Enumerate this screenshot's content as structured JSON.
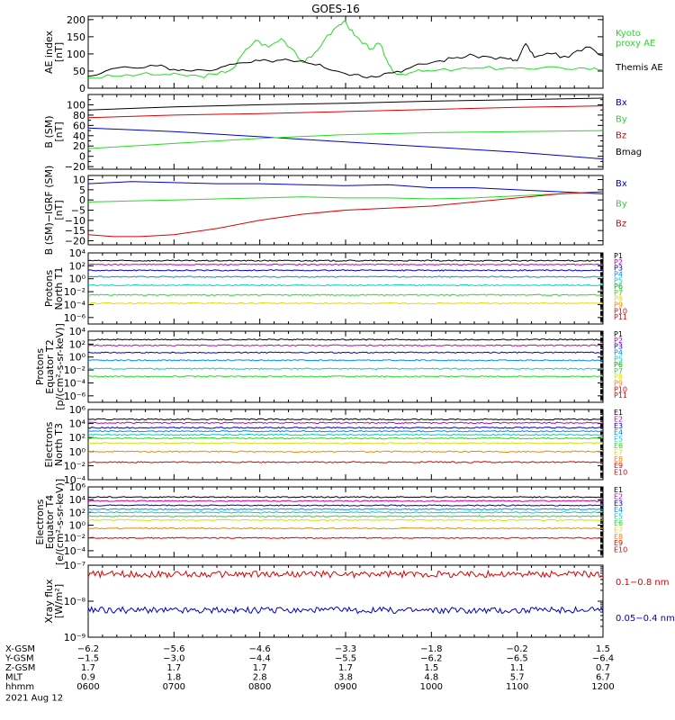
{
  "title": "GOES-16",
  "colors": {
    "black": "#000000",
    "green": "#22dd22",
    "blue": "#0000cc",
    "red": "#dd0000",
    "cyan": "#00cccc",
    "yellow": "#dddd00",
    "orange": "#ee8800",
    "magenta": "#bb00bb"
  },
  "chart_data": [
    {
      "id": "ae",
      "type": "line",
      "ylabel": [
        "AE index",
        "[nT]"
      ],
      "yscale": "linear",
      "ylim": [
        0,
        210
      ],
      "ticks": [
        0,
        50,
        100,
        150,
        200
      ],
      "tick_labels": [
        "0",
        "50",
        "100",
        "150",
        "200"
      ],
      "series": [
        {
          "name": "Kyoto proxy AE",
          "color": "#22dd22",
          "label_lines": [
            "Kyoto",
            "proxy AE"
          ],
          "x": [
            6.0,
            6.3,
            6.6,
            6.9,
            7.1,
            7.3,
            7.5,
            7.7,
            7.8,
            7.95,
            8.1,
            8.25,
            8.4,
            8.5,
            8.6,
            8.75,
            8.9,
            9.0,
            9.1,
            9.2,
            9.3,
            9.4,
            9.5,
            9.6,
            9.8,
            10.0,
            10.3,
            10.6,
            10.9,
            11.2,
            11.5,
            11.8,
            12.0
          ],
          "y": [
            30,
            35,
            40,
            40,
            38,
            35,
            40,
            60,
            100,
            140,
            120,
            145,
            110,
            75,
            90,
            140,
            180,
            195,
            155,
            130,
            115,
            130,
            70,
            40,
            48,
            50,
            55,
            58,
            60,
            55,
            60,
            58,
            55
          ]
        },
        {
          "name": "Themis AE",
          "color": "#000000",
          "label_lines": [
            "Themis AE"
          ],
          "x": [
            6.0,
            6.2,
            6.5,
            6.8,
            7.0,
            7.2,
            7.5,
            7.7,
            7.9,
            8.1,
            8.3,
            8.5,
            8.7,
            8.9,
            9.1,
            9.3,
            9.5,
            9.7,
            9.9,
            10.1,
            10.3,
            10.5,
            10.7,
            10.9,
            11.0,
            11.1,
            11.2,
            11.4,
            11.6,
            11.8,
            12.0
          ],
          "y": [
            35,
            50,
            60,
            65,
            55,
            50,
            55,
            70,
            75,
            80,
            85,
            80,
            70,
            50,
            40,
            35,
            45,
            55,
            70,
            80,
            90,
            95,
            90,
            85,
            80,
            130,
            90,
            100,
            90,
            120,
            95
          ]
        }
      ]
    },
    {
      "id": "bsm",
      "type": "line",
      "ylabel": [
        "B (SM)",
        "[nT]"
      ],
      "yscale": "linear",
      "ylim": [
        -25,
        120
      ],
      "ticks": [
        -20,
        0,
        20,
        40,
        60,
        80,
        100
      ],
      "tick_labels": [
        "−20",
        "0",
        "20",
        "40",
        "60",
        "80",
        "100"
      ],
      "minor_ticks": [
        -10,
        10,
        30,
        50,
        70,
        90,
        110
      ],
      "series": [
        {
          "name": "Bx",
          "color": "#0000cc",
          "x": [
            6,
            7,
            8,
            9,
            10,
            11,
            12
          ],
          "y": [
            55,
            48,
            38,
            28,
            18,
            8,
            -5
          ]
        },
        {
          "name": "By",
          "color": "#22dd22",
          "x": [
            6,
            7,
            8,
            9,
            10,
            11,
            12
          ],
          "y": [
            15,
            25,
            35,
            42,
            46,
            48,
            50
          ]
        },
        {
          "name": "Bz",
          "color": "#dd0000",
          "x": [
            6,
            7,
            8,
            9,
            10,
            11,
            12
          ],
          "y": [
            75,
            80,
            83,
            87,
            91,
            95,
            98
          ]
        },
        {
          "name": "Bmag",
          "color": "#000000",
          "x": [
            6,
            7,
            8,
            9,
            10,
            11,
            12
          ],
          "y": [
            90,
            96,
            100,
            103,
            107,
            110,
            113
          ]
        }
      ]
    },
    {
      "id": "bsmigrf",
      "type": "line",
      "ylabel": [
        "B (SM)−IGRF (SM)",
        "[nT]"
      ],
      "yscale": "linear",
      "ylim": [
        -22,
        12
      ],
      "ticks": [
        -20,
        -15,
        -10,
        -5,
        0,
        5,
        10
      ],
      "tick_labels": [
        "−20",
        "−15",
        "−10",
        "−5",
        "0",
        "5",
        "10"
      ],
      "series": [
        {
          "name": "Bx",
          "color": "#0000cc",
          "x": [
            6,
            6.5,
            7,
            7.5,
            8,
            8.5,
            9,
            9.5,
            10,
            10.5,
            11,
            11.5,
            12
          ],
          "y": [
            8,
            9,
            8.5,
            8,
            8,
            7.5,
            7,
            7.5,
            6,
            6,
            5,
            4,
            3
          ]
        },
        {
          "name": "By",
          "color": "#22dd22",
          "x": [
            6,
            6.5,
            7,
            7.5,
            8,
            8.5,
            9,
            9.5,
            10,
            10.5,
            11,
            11.5,
            12
          ],
          "y": [
            -1,
            -0.5,
            0,
            0.5,
            1,
            1.5,
            1,
            1,
            0.5,
            1,
            2,
            3,
            4
          ]
        },
        {
          "name": "Bz",
          "color": "#dd0000",
          "x": [
            6,
            6.3,
            6.6,
            7,
            7.5,
            8,
            8.5,
            9,
            9.5,
            10,
            10.5,
            11,
            11.5,
            12
          ],
          "y": [
            -17,
            -18,
            -18,
            -17,
            -14,
            -10,
            -7,
            -5,
            -4,
            -3,
            -1,
            1,
            3,
            4
          ]
        }
      ]
    },
    {
      "id": "protons_t1",
      "type": "line",
      "ylabel": [
        "Protons",
        "North T1"
      ],
      "yscale": "log",
      "ylim": [
        -7,
        4
      ],
      "ticks": [
        -6,
        -4,
        -2,
        0,
        2,
        4
      ],
      "tick_labels": [
        "10⁻⁶",
        "10⁻⁴",
        "10⁻²",
        "10⁰",
        "10²",
        "10⁴"
      ],
      "legend": [
        "P1",
        "P2",
        "P3",
        "P4",
        "P5",
        "P6",
        "P7",
        "P8",
        "P9",
        "P10",
        "P11"
      ],
      "legend_colors": [
        "#000000",
        "#bb00bb",
        "#0000cc",
        "#0088ff",
        "#00cccc",
        "#00aa00",
        "#22dd22",
        "#dddd00",
        "#ee8800",
        "#dd0000",
        "#dd0000"
      ],
      "series": [
        {
          "name": "P1",
          "color": "#000000",
          "level": 2.8
        },
        {
          "name": "P2",
          "color": "#bb00bb",
          "level": 2.2
        },
        {
          "name": "P3",
          "color": "#0000cc",
          "level": 1.3
        },
        {
          "name": "P4",
          "color": "#0088ff",
          "level": 0.3
        },
        {
          "name": "P5",
          "color": "#00cccc",
          "level": -1.0
        },
        {
          "name": "P6",
          "color": "#22dd22",
          "level": -2.5
        },
        {
          "name": "P7",
          "color": "#dddd00",
          "level": -3.8
        }
      ]
    },
    {
      "id": "protons_t2",
      "type": "line",
      "ylabel": [
        "Protons",
        "Equator T2",
        "[p/(cm²-s-sr-keV)]"
      ],
      "yscale": "log",
      "ylim": [
        -7,
        4
      ],
      "ticks": [
        -6,
        -4,
        -2,
        0,
        2,
        4
      ],
      "tick_labels": [
        "10⁻⁶",
        "10⁻⁴",
        "10⁻²",
        "10⁰",
        "10²",
        "10⁴"
      ],
      "legend": [
        "P1",
        "P2",
        "P3",
        "P4",
        "P5",
        "P6",
        "P7",
        "P8",
        "P9",
        "P10",
        "P11"
      ],
      "legend_colors": [
        "#000000",
        "#bb00bb",
        "#0000cc",
        "#0088ff",
        "#00cccc",
        "#00aa00",
        "#22dd22",
        "#dddd00",
        "#ee8800",
        "#dd0000",
        "#dd0000"
      ],
      "series": [
        {
          "name": "P1",
          "color": "#000000",
          "level": 2.7
        },
        {
          "name": "P2",
          "color": "#bb00bb",
          "level": 1.8
        },
        {
          "name": "P3",
          "color": "#0000cc",
          "level": 0.7
        },
        {
          "name": "P4",
          "color": "#0088ff",
          "level": -0.5
        },
        {
          "name": "P5",
          "color": "#00cccc",
          "level": -1.8
        },
        {
          "name": "P6",
          "color": "#22dd22",
          "level": -3.0
        }
      ]
    },
    {
      "id": "electrons_t3",
      "type": "line",
      "ylabel": [
        "Electrons",
        "North T3"
      ],
      "yscale": "log",
      "ylim": [
        -4,
        6
      ],
      "ticks": [
        -4,
        -2,
        0,
        2,
        4,
        6
      ],
      "tick_labels": [
        "10⁻⁴",
        "10⁻²",
        "10⁰",
        "10²",
        "10⁴",
        "10⁶"
      ],
      "legend": [
        "E1",
        "E2",
        "E3",
        "E4",
        "E5",
        "E6",
        "E7",
        "E8",
        "E9",
        "E10"
      ],
      "legend_colors": [
        "#000000",
        "#bb00bb",
        "#0000cc",
        "#0088ff",
        "#00cccc",
        "#22dd22",
        "#dddd00",
        "#ee8800",
        "#dd0000",
        "#dd0000"
      ],
      "series": [
        {
          "name": "E1",
          "color": "#000000",
          "level": 4.6
        },
        {
          "name": "E2",
          "color": "#bb00bb",
          "level": 4.1
        },
        {
          "name": "E3",
          "color": "#0000cc",
          "level": 3.4
        },
        {
          "name": "E4",
          "color": "#0088ff",
          "level": 2.9
        },
        {
          "name": "E5",
          "color": "#00cccc",
          "level": 2.4
        },
        {
          "name": "E6",
          "color": "#22dd22",
          "level": 1.9
        },
        {
          "name": "E7",
          "color": "#dddd00",
          "level": 1.2
        },
        {
          "name": "E8",
          "color": "#ee8800",
          "level": 0.0
        },
        {
          "name": "E9",
          "color": "#dd0000",
          "level": -1.5
        }
      ]
    },
    {
      "id": "electrons_t4",
      "type": "line",
      "ylabel": [
        "Electrons",
        "Equator T4",
        "[e/(cm²-s-sr-keV)]"
      ],
      "yscale": "log",
      "ylim": [
        -5,
        6
      ],
      "ticks": [
        -4,
        -2,
        0,
        2,
        4,
        6
      ],
      "tick_labels": [
        "10⁻⁴",
        "10⁻²",
        "10⁰",
        "10²",
        "10⁴",
        "10⁶"
      ],
      "legend": [
        "E1",
        "E2",
        "E3",
        "E4",
        "E5",
        "E6",
        "E7",
        "E8",
        "E9",
        "E10"
      ],
      "legend_colors": [
        "#000000",
        "#bb00bb",
        "#0000cc",
        "#0088ff",
        "#00cccc",
        "#22dd22",
        "#dddd00",
        "#ee8800",
        "#dd0000",
        "#dd0000"
      ],
      "series": [
        {
          "name": "E1",
          "color": "#000000",
          "level": 4.4
        },
        {
          "name": "E2",
          "color": "#bb00bb",
          "level": 3.8
        },
        {
          "name": "E3",
          "color": "#0000cc",
          "level": 3.1
        },
        {
          "name": "E4",
          "color": "#0088ff",
          "level": 2.5
        },
        {
          "name": "E5",
          "color": "#00cccc",
          "level": 2.0
        },
        {
          "name": "E6",
          "color": "#22dd22",
          "level": 1.4
        },
        {
          "name": "E7",
          "color": "#dddd00",
          "level": 0.8
        },
        {
          "name": "E8",
          "color": "#ee8800",
          "level": -0.5
        },
        {
          "name": "E9",
          "color": "#dd0000",
          "level": -2.0
        }
      ]
    },
    {
      "id": "xray",
      "type": "line",
      "ylabel": [
        "Xray flux",
        "[W/m²]"
      ],
      "yscale": "log",
      "ylim": [
        -9,
        -7
      ],
      "ticks": [
        -9,
        -8,
        -7
      ],
      "tick_labels": [
        "10⁻⁹",
        "10⁻⁸",
        "10⁻⁷"
      ],
      "series": [
        {
          "name": "0.1−0.8 nm",
          "color": "#dd0000",
          "level": -7.25
        },
        {
          "name": "0.05−0.4 nm",
          "color": "#0000cc",
          "level": -8.25
        }
      ]
    }
  ],
  "x_axis": {
    "range": [
      6,
      12
    ],
    "ticks": [
      6,
      7,
      8,
      9,
      10,
      11,
      12
    ],
    "rows": [
      {
        "label": "X-GSM",
        "values": [
          "−6.2",
          "−5.6",
          "−4.6",
          "−3.3",
          "−1.8",
          "−0.2",
          "1.5"
        ]
      },
      {
        "label": "Y-GSM",
        "values": [
          "−1.5",
          "−3.0",
          "−4.4",
          "−5.5",
          "−6.2",
          "−6.5",
          "−6.4"
        ]
      },
      {
        "label": "Z-GSM",
        "values": [
          "1.7",
          "1.7",
          "1.7",
          "1.7",
          "1.5",
          "1.1",
          "0.7"
        ]
      },
      {
        "label": "MLT",
        "values": [
          "0.9",
          "1.8",
          "2.8",
          "3.8",
          "4.8",
          "5.7",
          "6.7"
        ]
      },
      {
        "label": "hhmm",
        "values": [
          "0600",
          "0700",
          "0800",
          "0900",
          "1000",
          "1100",
          "1200"
        ]
      }
    ],
    "date": "2021 Aug 12"
  }
}
